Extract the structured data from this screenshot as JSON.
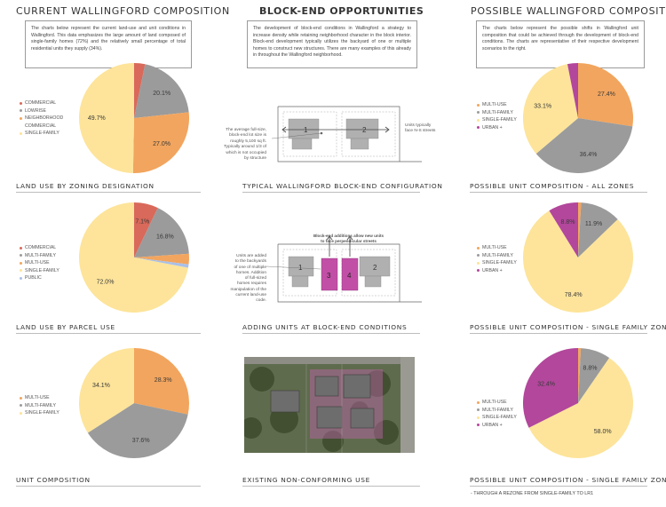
{
  "headings": {
    "left": "CURRENT WALLINGFORD COMPOSITION",
    "middle": "BLOCK-END OPPORTUNITIES",
    "right": "POSSIBLE WALLINGFORD COMPOSITION"
  },
  "intros": {
    "left": "The charts below represent the current land-use and unit conditions in Wallingford. This data emphasizes the large amount of land composed of single-family homes (72%) and the relatively small percentage of total residential units they supply (34%).",
    "middle": "The development of block-end conditions in Wallingford a strategy to increase density while retaining neighborhood character in the block interior. Block-end development typically utilizes the backyard of one or multiple homes to construct new structures. There are many examples of this already in throughout the Wallingford neighborhood.",
    "right": "The charts below represent the possible shifts in Wallingford unit composition that could be achieved through the development of block-end conditions. The charts are representative of their respective development scenarios to the right."
  },
  "panel_labels": {
    "left_1": "LAND USE BY ZONING DESIGNATION",
    "left_2": "LAND USE BY PARCEL USE",
    "left_3": "UNIT COMPOSITION",
    "mid_1": "TYPICAL WALLINGFORD BLOCK-END CONFIGURATION",
    "mid_2": "ADDING UNITS AT BLOCK-END CONDITIONS",
    "mid_3": "EXISTING NON-CONFORMING USE",
    "right_1": "POSSIBLE UNIT COMPOSITION - ALL ZONES",
    "right_2": "POSSIBLE UNIT COMPOSITION - SINGLE FAMILY ZONES",
    "right_3": "POSSIBLE UNIT COMPOSITION - SINGLE FAMILY ZONES"
  },
  "footnote": "- THROUGH A REZONE FROM SINGLE-FAMILY TO LR1",
  "diagram1": {
    "lot_note": "The average full-size,\nblock-end lot size is\nroughly 5,100 sq ft.\nTypically around 1/3 of\nwhich  is not occupied\nby structure",
    "units_note": "Units typically\nface N-S streets",
    "house_1": "1",
    "house_2": "2"
  },
  "diagram2": {
    "added_note": "Units are added\nto  the backyards\nof one of multiple\nhomes. Addition\nof full-sized\nhomes requires\nmanipulation of the\ncurrent land-use\ncode.",
    "top_note": "Block-end additions allow new units\nto face perpendicular streets",
    "house_1": "1",
    "house_2": "2",
    "house_3": "3",
    "house_4": "4"
  },
  "colors": {
    "commercial": "#d9695a",
    "gray": "#9b9b9b",
    "orange": "#f2a55e",
    "yellow": "#fde49a",
    "purple": "#b2479b",
    "public": "#a9c0e8",
    "magenta_house": "#c24fa6"
  },
  "chart_data": [
    {
      "id": "left_1",
      "type": "pie",
      "slices": [
        {
          "name": "COMMERCIAL",
          "value": 3.2,
          "color": "#d9695a",
          "label": ""
        },
        {
          "name": "LOWRISE",
          "value": 20.1,
          "color": "#9b9b9b",
          "label": "20.1%"
        },
        {
          "name": "NEIGHBORHOOD COMMERCIAL",
          "value": 27.0,
          "color": "#f2a55e",
          "label": "27.0%"
        },
        {
          "name": "SINGLE-FAMILY",
          "value": 49.7,
          "color": "#fde49a",
          "label": "49.7%"
        }
      ],
      "legend": [
        "COMMERCIAL",
        "LOWRISE",
        "NEIGHBORHOOD\nCOMMERCIAL",
        "SINGLE-FAMILY"
      ],
      "legend_colors": [
        "#d9695a",
        "#9b9b9b",
        "#f2a55e",
        "#fde49a"
      ]
    },
    {
      "id": "left_2",
      "type": "pie",
      "slices": [
        {
          "name": "COMMERCIAL",
          "value": 7.1,
          "color": "#d9695a",
          "label": "7.1%"
        },
        {
          "name": "MULTI-FAMILY",
          "value": 16.8,
          "color": "#9b9b9b",
          "label": "16.8%"
        },
        {
          "name": "MULTI-USE",
          "value": 3.1,
          "color": "#f2a55e",
          "label": ""
        },
        {
          "name": "PUBLIC",
          "value": 1.0,
          "color": "#a9c0e8",
          "label": ""
        },
        {
          "name": "SINGLE-FAMILY",
          "value": 72.0,
          "color": "#fde49a",
          "label": "72.0%"
        }
      ],
      "legend": [
        "COMMERCIAL",
        "MULTI-FAMILY",
        "MULTI-USE",
        "SINGLE-FAMILY",
        "PUBLIC"
      ],
      "legend_colors": [
        "#d9695a",
        "#9b9b9b",
        "#f2a55e",
        "#fde49a",
        "#a9c0e8"
      ]
    },
    {
      "id": "left_3",
      "type": "pie",
      "slices": [
        {
          "name": "MULTI-USE",
          "value": 28.3,
          "color": "#f2a55e",
          "label": "28.3%"
        },
        {
          "name": "MULTI-FAMILY",
          "value": 37.6,
          "color": "#9b9b9b",
          "label": "37.6%"
        },
        {
          "name": "SINGLE-FAMILY",
          "value": 34.1,
          "color": "#fde49a",
          "label": "34.1%"
        }
      ],
      "legend": [
        "MULTI-USE",
        "MULTI-FAMILY",
        "SINGLE-FAMILY"
      ],
      "legend_colors": [
        "#f2a55e",
        "#9b9b9b",
        "#fde49a"
      ]
    },
    {
      "id": "right_1",
      "type": "pie",
      "slices": [
        {
          "name": "MULTI-USE",
          "value": 27.4,
          "color": "#f2a55e",
          "label": "27.4%"
        },
        {
          "name": "MULTI-FAMILY",
          "value": 36.4,
          "color": "#9b9b9b",
          "label": "36.4%"
        },
        {
          "name": "SINGLE-FAMILY",
          "value": 33.1,
          "color": "#fde49a",
          "label": "33.1%"
        },
        {
          "name": "URBAN +",
          "value": 3.1,
          "color": "#b2479b",
          "label": ""
        }
      ],
      "legend": [
        "MULTI-USE",
        "MULTI-FAMILY",
        "SINGLE-FAMILY",
        "URBAN +"
      ],
      "legend_colors": [
        "#f2a55e",
        "#9b9b9b",
        "#fde49a",
        "#b2479b"
      ]
    },
    {
      "id": "right_2",
      "type": "pie",
      "slices": [
        {
          "name": "MULTI-USE",
          "value": 0.9,
          "color": "#f2a55e",
          "label": ""
        },
        {
          "name": "MULTI-FAMILY",
          "value": 11.9,
          "color": "#9b9b9b",
          "label": "11.9%"
        },
        {
          "name": "SINGLE-FAMILY",
          "value": 78.4,
          "color": "#fde49a",
          "label": "78.4%"
        },
        {
          "name": "URBAN +",
          "value": 8.8,
          "color": "#b2479b",
          "label": "8.8%"
        }
      ],
      "legend": [
        "MULTI-USE",
        "MULTI-FAMILY",
        "SINGLE-FAMILY",
        "URBAN +"
      ],
      "legend_colors": [
        "#f2a55e",
        "#9b9b9b",
        "#fde49a",
        "#b2479b"
      ]
    },
    {
      "id": "right_3",
      "type": "pie",
      "slices": [
        {
          "name": "MULTI-USE",
          "value": 0.8,
          "color": "#f2a55e",
          "label": ""
        },
        {
          "name": "MULTI-FAMILY",
          "value": 8.8,
          "color": "#9b9b9b",
          "label": "8.8%"
        },
        {
          "name": "SINGLE-FAMILY",
          "value": 58.0,
          "color": "#fde49a",
          "label": "58.0%"
        },
        {
          "name": "URBAN +",
          "value": 32.4,
          "color": "#b2479b",
          "label": "32.4%"
        }
      ],
      "legend": [
        "MULTI-USE",
        "MULTI-FAMILY",
        "SINGLE-FAMILY",
        "URBAN +"
      ],
      "legend_colors": [
        "#f2a55e",
        "#9b9b9b",
        "#fde49a",
        "#b2479b"
      ]
    }
  ]
}
